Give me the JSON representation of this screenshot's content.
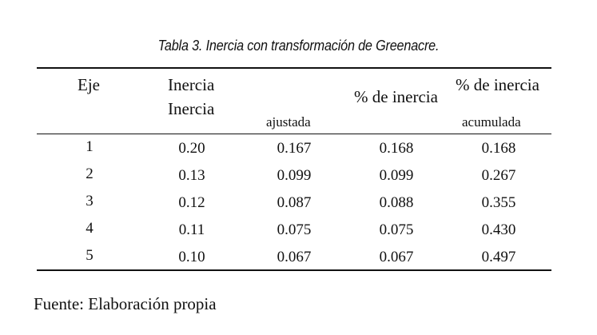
{
  "caption": "Tabla 3. Inercia con transformación de Greenacre.",
  "headers": {
    "eje": "Eje",
    "inercia_1": "Inercia",
    "inercia_2": "Inercia",
    "ajustada": "ajustada",
    "pct_inercia": "% de inercia",
    "pct_inercia_2": "% de inercia",
    "acumulada": "acumulada"
  },
  "rows": [
    [
      "1",
      "0.20",
      "0.167",
      "0.168",
      "0.168"
    ],
    [
      "2",
      "0.13",
      "0.099",
      "0.099",
      "0.267"
    ],
    [
      "3",
      "0.12",
      "0.087",
      "0.088",
      "0.355"
    ],
    [
      "4",
      "0.11",
      "0.075",
      "0.075",
      "0.430"
    ],
    [
      "5",
      "0.10",
      "0.067",
      "0.067",
      "0.497"
    ]
  ],
  "footer": "Fuente: Elaboración propia"
}
